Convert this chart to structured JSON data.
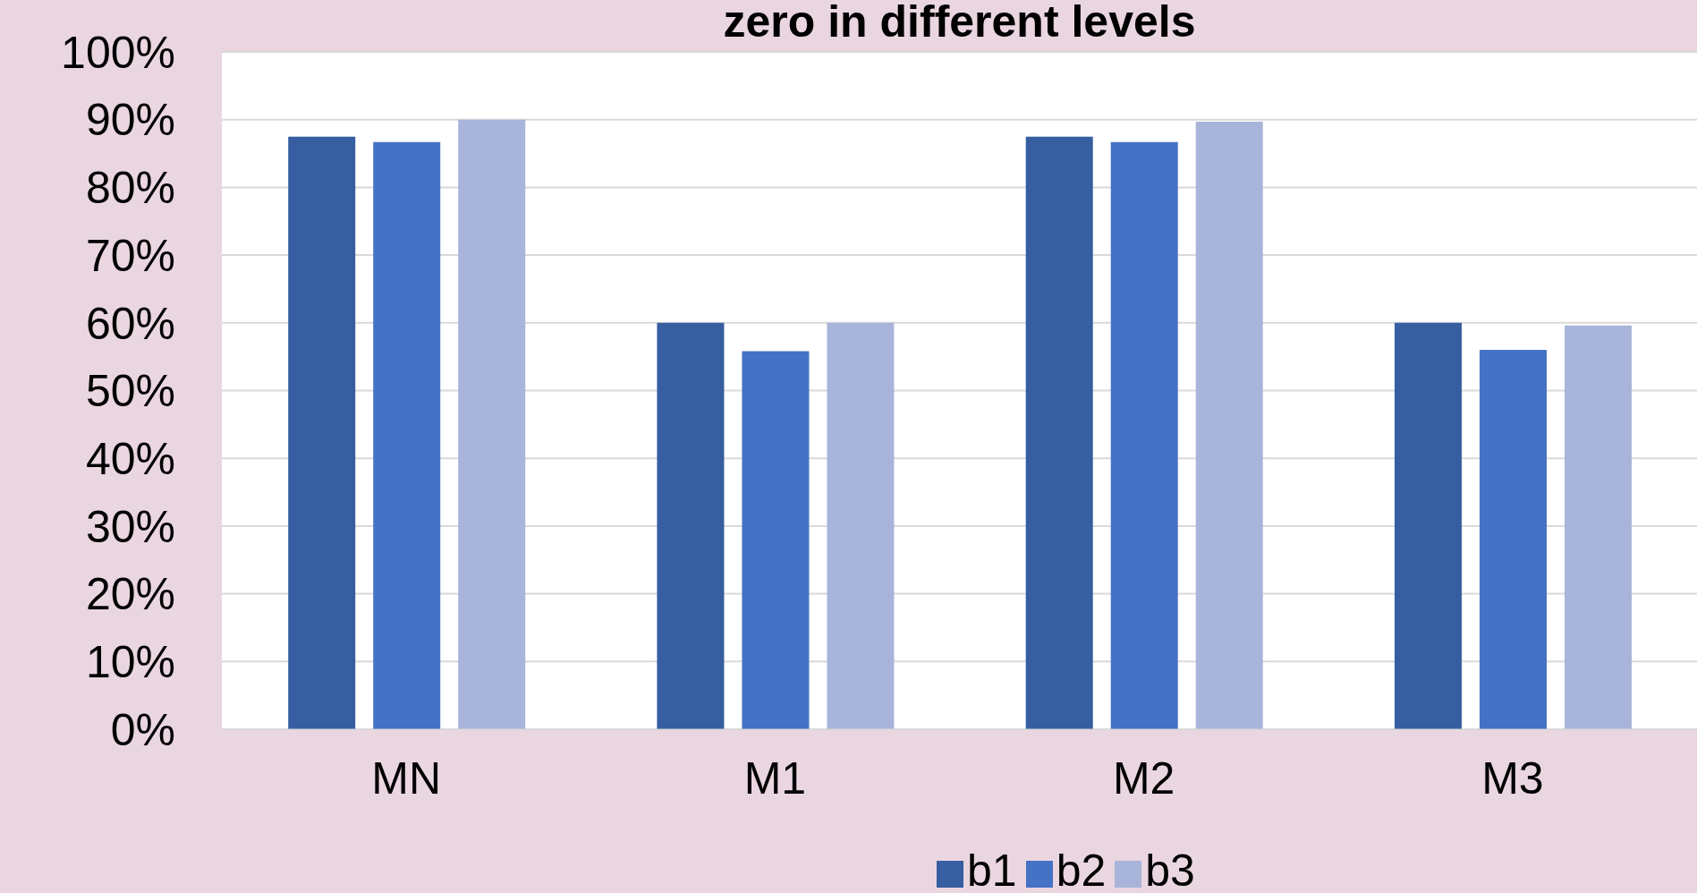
{
  "chart_data": {
    "type": "bar",
    "title": "zero in different levels",
    "categories": [
      "MN",
      "M1",
      "M2",
      "M3"
    ],
    "series": [
      {
        "name": "b1",
        "color": "#365ea1",
        "values": [
          87.5,
          60,
          87.5,
          60
        ]
      },
      {
        "name": "b2",
        "color": "#4472c4",
        "values": [
          86.7,
          55.8,
          86.7,
          56
        ]
      },
      {
        "name": "b3",
        "color": "#a8b4d9",
        "values": [
          90,
          60,
          89.7,
          59.6
        ]
      }
    ],
    "ylim": [
      0,
      100
    ],
    "yticks": [
      {
        "value": 0,
        "label": "0%"
      },
      {
        "value": 10,
        "label": "10%"
      },
      {
        "value": 20,
        "label": "20%"
      },
      {
        "value": 30,
        "label": "30%"
      },
      {
        "value": 40,
        "label": "40%"
      },
      {
        "value": 50,
        "label": "50%"
      },
      {
        "value": 60,
        "label": "60%"
      },
      {
        "value": 70,
        "label": "70%"
      },
      {
        "value": 80,
        "label": "80%"
      },
      {
        "value": 90,
        "label": "90%"
      },
      {
        "value": 100,
        "label": "100%"
      }
    ],
    "grid": "y",
    "legend": "bottom"
  }
}
